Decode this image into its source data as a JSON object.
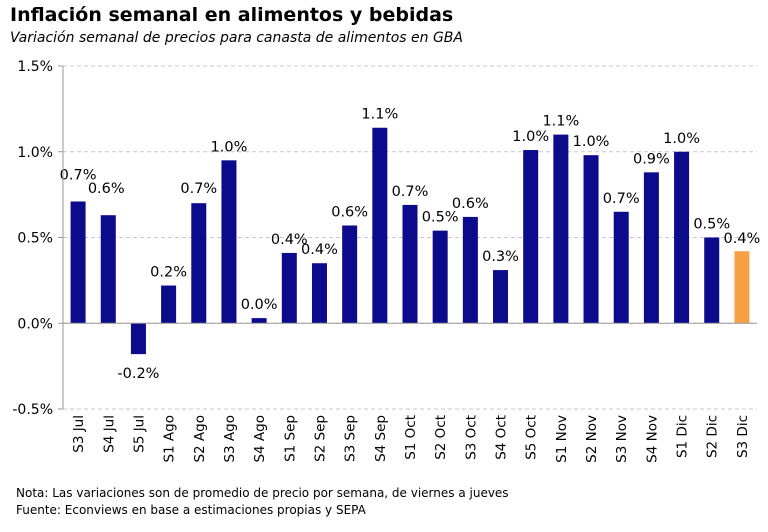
{
  "chart_data": {
    "type": "bar",
    "title": "Inflación semanal en alimentos y bebidas",
    "subtitle": "Variación semanal de precios para canasta de alimentos en GBA",
    "categories": [
      "S3 Jul",
      "S4 Jul",
      "S5 Jul",
      "S1 Ago",
      "S2 Ago",
      "S3 Ago",
      "S4 Ago",
      "S1 Sep",
      "S2 Sep",
      "S3 Sep",
      "S4 Sep",
      "S1 Oct",
      "S2 Oct",
      "S3 Oct",
      "S4 Oct",
      "S5 Oct",
      "S1 Nov",
      "S2 Nov",
      "S3 Nov",
      "S4 Nov",
      "S1 Dic",
      "S2 Dic",
      "S3 Dic"
    ],
    "values": [
      0.71,
      0.63,
      -0.18,
      0.22,
      0.7,
      0.95,
      0.03,
      0.41,
      0.35,
      0.57,
      1.14,
      0.69,
      0.54,
      0.62,
      0.31,
      1.01,
      1.1,
      0.98,
      0.65,
      0.88,
      1.0,
      0.5,
      0.42
    ],
    "data_labels": [
      "0.7%",
      "0.6%",
      "-0.2%",
      "0.2%",
      "0.7%",
      "1.0%",
      "0.0%",
      "0.4%",
      "0.4%",
      "0.6%",
      "1.1%",
      "0.7%",
      "0.5%",
      "0.6%",
      "0.3%",
      "1.0%",
      "1.1%",
      "1.0%",
      "0.7%",
      "0.9%",
      "1.0%",
      "0.5%",
      "0.4%"
    ],
    "y_ticks": [
      1.5,
      1.0,
      0.5,
      0.0,
      -0.5
    ],
    "y_tick_labels": [
      "1.5%",
      "1.0%",
      "0.5%",
      "0.0%",
      "-0.5%"
    ],
    "ylim": [
      -0.5,
      1.5
    ],
    "grid": "horizontal-dashed",
    "colors": {
      "default": "#0b0b8c",
      "highlight": "#f7a046",
      "grid": "#c8c8c8",
      "axis": "#9a9a9a"
    },
    "highlight_index": 22
  },
  "notes": {
    "line1": "Nota: Las variaciones son de promedio de precio por semana, de viernes a jueves",
    "line2": "Fuente: Econviews en base a estimaciones propias y SEPA"
  }
}
